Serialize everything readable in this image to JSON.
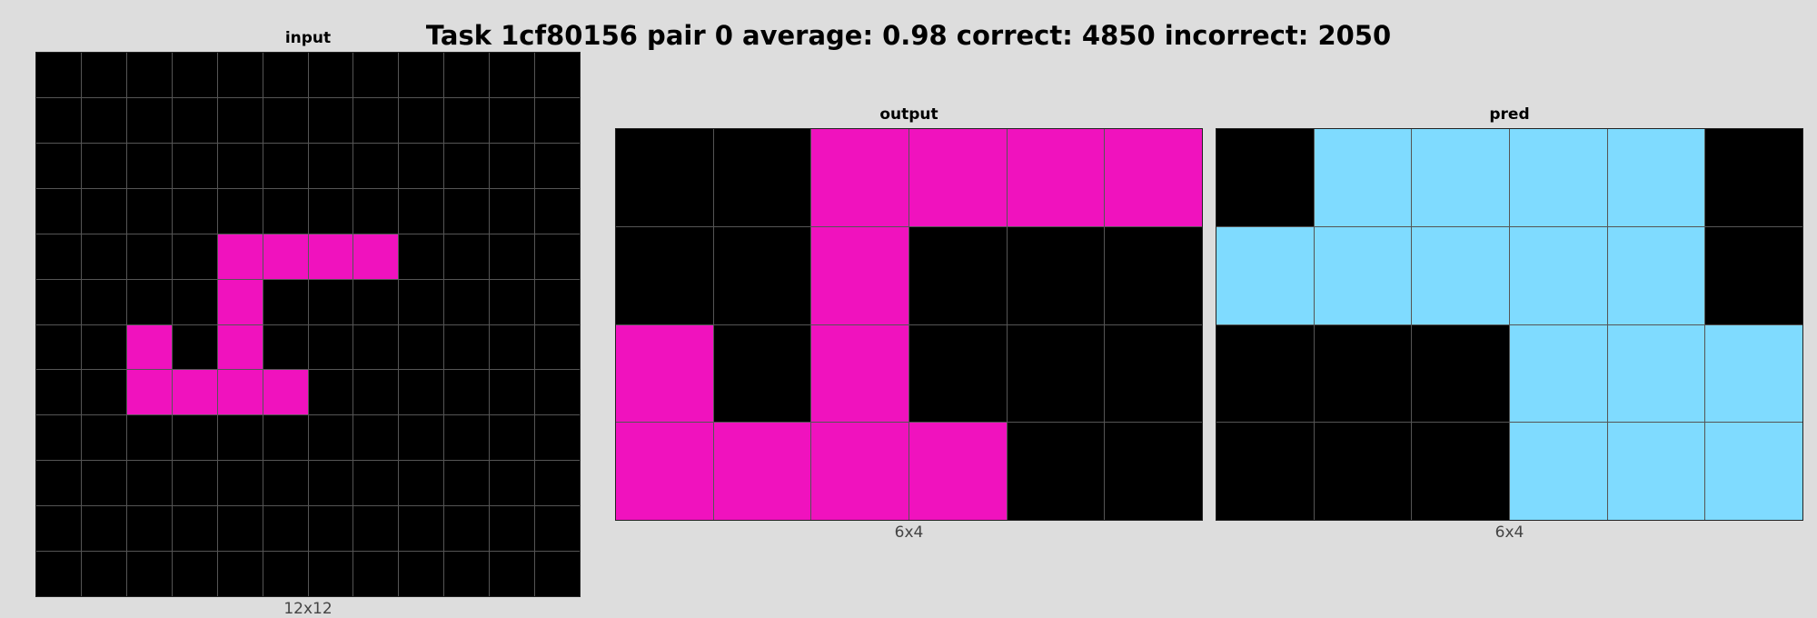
{
  "title": "Task 1cf80156 pair 0 average: 0.98 correct: 4850 incorrect: 2050",
  "colors": {
    "0": "#000000",
    "6": "#f012be",
    "8": "#7fdbff"
  },
  "panels": {
    "input": {
      "label": "input",
      "dims": "12x12",
      "grid": [
        [
          0,
          0,
          0,
          0,
          0,
          0,
          0,
          0,
          0,
          0,
          0,
          0
        ],
        [
          0,
          0,
          0,
          0,
          0,
          0,
          0,
          0,
          0,
          0,
          0,
          0
        ],
        [
          0,
          0,
          0,
          0,
          0,
          0,
          0,
          0,
          0,
          0,
          0,
          0
        ],
        [
          0,
          0,
          0,
          0,
          0,
          0,
          0,
          0,
          0,
          0,
          0,
          0
        ],
        [
          0,
          0,
          0,
          0,
          6,
          6,
          6,
          6,
          0,
          0,
          0,
          0
        ],
        [
          0,
          0,
          0,
          0,
          6,
          0,
          0,
          0,
          0,
          0,
          0,
          0
        ],
        [
          0,
          0,
          6,
          0,
          6,
          0,
          0,
          0,
          0,
          0,
          0,
          0
        ],
        [
          0,
          0,
          6,
          6,
          6,
          6,
          0,
          0,
          0,
          0,
          0,
          0
        ],
        [
          0,
          0,
          0,
          0,
          0,
          0,
          0,
          0,
          0,
          0,
          0,
          0
        ],
        [
          0,
          0,
          0,
          0,
          0,
          0,
          0,
          0,
          0,
          0,
          0,
          0
        ],
        [
          0,
          0,
          0,
          0,
          0,
          0,
          0,
          0,
          0,
          0,
          0,
          0
        ],
        [
          0,
          0,
          0,
          0,
          0,
          0,
          0,
          0,
          0,
          0,
          0,
          0
        ]
      ]
    },
    "output": {
      "label": "output",
      "dims": "6x4",
      "grid": [
        [
          0,
          0,
          6,
          6,
          6,
          6
        ],
        [
          0,
          0,
          6,
          0,
          0,
          0
        ],
        [
          6,
          0,
          6,
          0,
          0,
          0
        ],
        [
          6,
          6,
          6,
          6,
          0,
          0
        ]
      ]
    },
    "pred": {
      "label": "pred",
      "dims": "6x4",
      "grid": [
        [
          0,
          8,
          8,
          8,
          8,
          0
        ],
        [
          8,
          8,
          8,
          8,
          8,
          0
        ],
        [
          0,
          0,
          0,
          8,
          8,
          8
        ],
        [
          0,
          0,
          0,
          8,
          8,
          8
        ]
      ]
    }
  }
}
